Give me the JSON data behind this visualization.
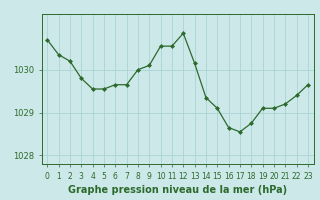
{
  "x": [
    0,
    1,
    2,
    3,
    4,
    5,
    6,
    7,
    8,
    9,
    10,
    11,
    12,
    13,
    14,
    15,
    16,
    17,
    18,
    19,
    20,
    21,
    22,
    23
  ],
  "y": [
    1030.7,
    1030.35,
    1030.2,
    1029.8,
    1029.55,
    1029.55,
    1029.65,
    1029.65,
    1030.0,
    1030.1,
    1030.55,
    1030.55,
    1030.85,
    1030.15,
    1029.35,
    1029.1,
    1028.65,
    1028.55,
    1028.75,
    1029.1,
    1029.1,
    1029.2,
    1029.4,
    1029.65
  ],
  "line_color": "#2d6a2d",
  "marker": "D",
  "marker_size": 2.0,
  "bg_color": "#cce8e8",
  "grid_color": "#aad4d4",
  "axis_color": "#2d6a2d",
  "tick_label_color": "#2d6a2d",
  "title": "Graphe pression niveau de la mer (hPa)",
  "title_color": "#2d6a2d",
  "title_fontsize": 7.0,
  "yticks": [
    1028,
    1029,
    1030
  ],
  "ylim": [
    1027.8,
    1031.3
  ],
  "xlim": [
    -0.5,
    23.5
  ],
  "xticks": [
    0,
    1,
    2,
    3,
    4,
    5,
    6,
    7,
    8,
    9,
    10,
    11,
    12,
    13,
    14,
    15,
    16,
    17,
    18,
    19,
    20,
    21,
    22,
    23
  ],
  "tick_fontsize": 5.5,
  "ylabel_fontsize": 6.0
}
